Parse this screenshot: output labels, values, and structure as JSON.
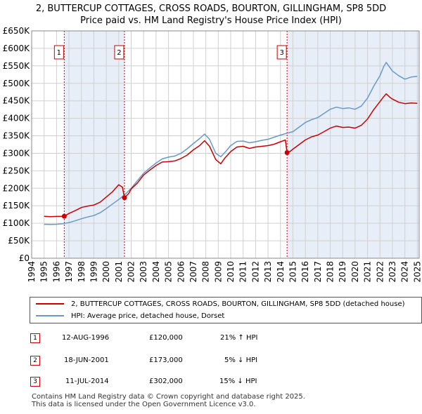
{
  "title_line1": "2, BUTTERCUP COTTAGES, CROSS ROADS, BOURTON, GILLINGHAM, SP8 5DD",
  "title_line2": "Price paid vs. HM Land Registry's House Price Index (HPI)",
  "colors": {
    "price_paid": "#cc0000",
    "hpi": "#6699cc",
    "grid": "#d0d0d0",
    "shade": "#e8eef7",
    "marker_line": "#cc0000"
  },
  "chart_data": {
    "type": "line",
    "title": "2, BUTTERCUP COTTAGES, CROSS ROADS, BOURTON, GILLINGHAM, SP8 5DD — Price paid vs. HM Land Registry's House Price Index (HPI)",
    "xlabel": "",
    "ylabel": "",
    "xlim": [
      1994,
      2025.15
    ],
    "ylim": [
      0,
      650000
    ],
    "grid": true,
    "legend_position": "below",
    "x_ticks": [
      "1994",
      "1995",
      "1996",
      "1997",
      "1998",
      "1999",
      "2000",
      "2001",
      "2002",
      "2003",
      "2004",
      "2005",
      "2006",
      "2007",
      "2008",
      "2009",
      "2010",
      "2011",
      "2012",
      "2013",
      "2014",
      "2015",
      "2016",
      "2017",
      "2018",
      "2019",
      "2020",
      "2021",
      "2022",
      "2023",
      "2024",
      "2025"
    ],
    "y_ticks": [
      {
        "value": 0,
        "label": "£0"
      },
      {
        "value": 50000,
        "label": "£50K"
      },
      {
        "value": 100000,
        "label": "£100K"
      },
      {
        "value": 150000,
        "label": "£150K"
      },
      {
        "value": 200000,
        "label": "£200K"
      },
      {
        "value": 250000,
        "label": "£250K"
      },
      {
        "value": 300000,
        "label": "£300K"
      },
      {
        "value": 350000,
        "label": "£350K"
      },
      {
        "value": 400000,
        "label": "£400K"
      },
      {
        "value": 450000,
        "label": "£450K"
      },
      {
        "value": 500000,
        "label": "£500K"
      },
      {
        "value": 550000,
        "label": "£550K"
      },
      {
        "value": 600000,
        "label": "£600K"
      },
      {
        "value": 650000,
        "label": "£650K"
      }
    ],
    "shaded_spans": [
      [
        1996.62,
        2001.46
      ],
      [
        2014.53,
        2025.15
      ]
    ],
    "series": [
      {
        "name": "2, BUTTERCUP COTTAGES, CROSS ROADS, BOURTON, GILLINGHAM, SP8 5DD (detached house)",
        "color": "#cc0000",
        "x": [
          1995.0,
          1995.5,
          1996.0,
          1996.62,
          1997.0,
          1997.5,
          1998.0,
          1998.5,
          1999.0,
          1999.5,
          2000.0,
          2000.5,
          2001.0,
          2001.3,
          2001.46,
          2001.8,
          2002.0,
          2002.5,
          2003.0,
          2003.5,
          2004.0,
          2004.5,
          2005.0,
          2005.5,
          2006.0,
          2006.5,
          2007.0,
          2007.5,
          2007.9,
          2008.3,
          2008.8,
          2009.2,
          2009.5,
          2010.0,
          2010.5,
          2011.0,
          2011.5,
          2012.0,
          2012.5,
          2013.0,
          2013.5,
          2014.0,
          2014.4,
          2014.53,
          2014.8,
          2015.0,
          2015.5,
          2016.0,
          2016.5,
          2017.0,
          2017.5,
          2018.0,
          2018.5,
          2019.0,
          2019.5,
          2020.0,
          2020.5,
          2021.0,
          2021.5,
          2022.0,
          2022.3,
          2022.5,
          2022.8,
          2023.0,
          2023.5,
          2024.0,
          2024.5,
          2025.0
        ],
        "values": [
          120000,
          119000,
          119500,
          120000,
          128000,
          136000,
          145000,
          149000,
          152000,
          160000,
          175000,
          190000,
          210000,
          203000,
          173000,
          185000,
          198000,
          215000,
          238000,
          252000,
          265000,
          275000,
          276000,
          278000,
          285000,
          295000,
          310000,
          322000,
          336000,
          320000,
          282000,
          270000,
          285000,
          305000,
          318000,
          320000,
          314000,
          318000,
          320000,
          322000,
          326000,
          333000,
          338000,
          302000,
          306000,
          312000,
          325000,
          338000,
          347000,
          352000,
          362000,
          372000,
          378000,
          374000,
          375000,
          372000,
          380000,
          398000,
          425000,
          448000,
          462000,
          470000,
          460000,
          455000,
          446000,
          442000,
          444000,
          443000
        ]
      },
      {
        "name": "HPI: Average price, detached house, Dorset",
        "color": "#6699cc",
        "x": [
          1995.0,
          1995.5,
          1996.0,
          1996.5,
          1997.0,
          1997.5,
          1998.0,
          1998.5,
          1999.0,
          1999.5,
          2000.0,
          2000.5,
          2001.0,
          2001.5,
          2002.0,
          2002.5,
          2003.0,
          2003.5,
          2004.0,
          2004.5,
          2005.0,
          2005.5,
          2006.0,
          2006.5,
          2007.0,
          2007.5,
          2007.9,
          2008.3,
          2008.8,
          2009.2,
          2009.6,
          2010.0,
          2010.5,
          2011.0,
          2011.5,
          2012.0,
          2012.5,
          2013.0,
          2013.5,
          2014.0,
          2014.5,
          2015.0,
          2015.5,
          2016.0,
          2016.5,
          2017.0,
          2017.5,
          2018.0,
          2018.5,
          2019.0,
          2019.5,
          2020.0,
          2020.5,
          2021.0,
          2021.5,
          2022.0,
          2022.3,
          2022.5,
          2022.8,
          2023.0,
          2023.5,
          2024.0,
          2024.5,
          2025.0
        ],
        "values": [
          97000,
          96500,
          97000,
          98500,
          102000,
          107000,
          113000,
          118000,
          122000,
          130000,
          142000,
          155000,
          168000,
          182000,
          200000,
          222000,
          243000,
          258000,
          272000,
          284000,
          289000,
          292000,
          300000,
          313000,
          328000,
          342000,
          355000,
          340000,
          300000,
          290000,
          305000,
          322000,
          334000,
          335000,
          330000,
          333000,
          337000,
          340000,
          346000,
          352000,
          357000,
          362000,
          375000,
          388000,
          396000,
          402000,
          414000,
          426000,
          432000,
          428000,
          430000,
          426000,
          435000,
          458000,
          492000,
          522000,
          548000,
          560000,
          545000,
          535000,
          522000,
          512000,
          518000,
          520000
        ]
      }
    ],
    "sales": [
      {
        "label": "1",
        "x": 1996.62,
        "price": 120000
      },
      {
        "label": "2",
        "x": 2001.46,
        "price": 173000
      },
      {
        "label": "3",
        "x": 2014.53,
        "price": 302000
      }
    ]
  },
  "legend": {
    "price_paid_label": "2, BUTTERCUP COTTAGES, CROSS ROADS, BOURTON, GILLINGHAM, SP8 5DD (detached house)",
    "hpi_label": "HPI: Average price, detached house, Dorset"
  },
  "transactions": [
    {
      "num": "1",
      "date": "12-AUG-1996",
      "price": "£120,000",
      "hpi": "21% ↑ HPI"
    },
    {
      "num": "2",
      "date": "18-JUN-2001",
      "price": "£173,000",
      "hpi": "5% ↓ HPI"
    },
    {
      "num": "3",
      "date": "11-JUL-2014",
      "price": "£302,000",
      "hpi": "15% ↓ HPI"
    }
  ],
  "footer": {
    "line1": "Contains HM Land Registry data © Crown copyright and database right 2025.",
    "line2": "This data is licensed under the Open Government Licence v3.0."
  }
}
